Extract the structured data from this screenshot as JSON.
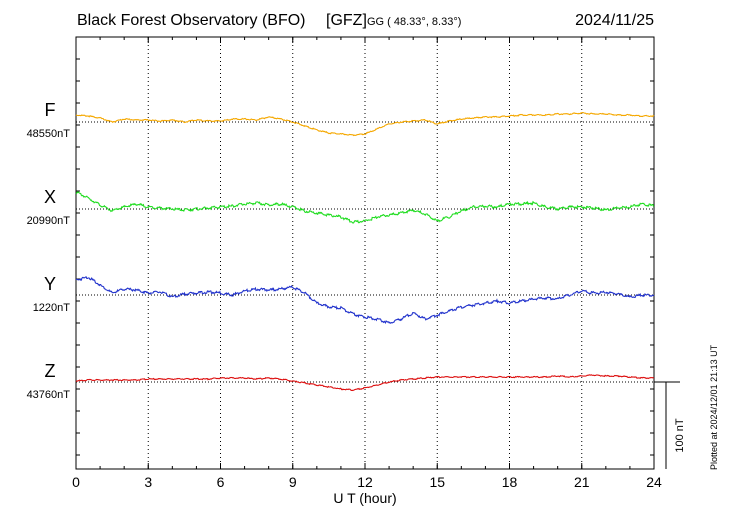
{
  "header": {
    "station": "Black Forest Observatory (BFO)",
    "institute": "[GFZ]",
    "coord_label": "GG ( 48.33°,   8.33°)",
    "date": "2024/11/25"
  },
  "plotted_note": "Plotted at 2024/12/01 21:13 UT",
  "chart_data": {
    "type": "line",
    "xlabel": "U T (hour)",
    "xlim": [
      0,
      24
    ],
    "xticks": [
      0,
      3,
      6,
      9,
      12,
      15,
      18,
      21,
      24
    ],
    "scale_bar_label": "100 nT",
    "scale_bar_nt": 100,
    "series": [
      {
        "name": "F",
        "baseline_label": "48550nT",
        "baseline_nt": 48550,
        "color": "#f5a800",
        "hours": [
          0,
          0.5,
          1,
          1.5,
          2,
          2.5,
          3,
          3.5,
          4,
          4.5,
          5,
          5.5,
          6,
          6.5,
          7,
          7.5,
          8,
          8.5,
          9,
          9.5,
          10,
          10.5,
          11,
          11.5,
          12,
          12.5,
          13,
          13.5,
          14,
          14.5,
          15,
          15.5,
          16,
          16.5,
          17,
          17.5,
          18,
          18.5,
          19,
          19.5,
          20,
          20.5,
          21,
          21.5,
          22,
          22.5,
          23,
          23.5,
          24
        ],
        "offsets_nt": [
          7,
          6,
          4,
          0,
          3,
          2,
          2,
          1,
          2,
          0,
          2,
          1,
          1,
          3,
          3,
          2,
          5,
          3,
          0,
          -4,
          -8,
          -11,
          -12,
          -13,
          -12,
          -7,
          -2,
          0,
          1,
          2,
          -2,
          1,
          3,
          4,
          5,
          5,
          6,
          7,
          7,
          7,
          8,
          8,
          9,
          8,
          8,
          7,
          7,
          6,
          6
        ]
      },
      {
        "name": "X",
        "baseline_label": "20990nT",
        "baseline_nt": 20990,
        "color": "#22dd22",
        "hours": [
          0,
          0.5,
          1,
          1.5,
          2,
          2.5,
          3,
          3.5,
          4,
          4.5,
          5,
          5.5,
          6,
          6.5,
          7,
          7.5,
          8,
          8.5,
          9,
          9.5,
          10,
          10.5,
          11,
          11.5,
          12,
          12.5,
          13,
          13.5,
          14,
          14.5,
          15,
          15.5,
          16,
          16.5,
          17,
          17.5,
          18,
          18.5,
          19,
          19.5,
          20,
          20.5,
          21,
          21.5,
          22,
          22.5,
          23,
          23.5,
          24
        ],
        "offsets_nt": [
          17,
          11,
          4,
          -2,
          2,
          5,
          2,
          1,
          0,
          -1,
          0,
          1,
          2,
          3,
          5,
          6,
          4,
          5,
          2,
          -2,
          -4,
          -6,
          -8,
          -13,
          -12,
          -8,
          -6,
          -4,
          -1,
          -5,
          -12,
          -8,
          -2,
          2,
          3,
          2,
          5,
          5,
          6,
          2,
          0,
          2,
          2,
          1,
          -1,
          1,
          2,
          5,
          3
        ]
      },
      {
        "name": "Y",
        "baseline_label": "1220nT",
        "baseline_nt": 1220,
        "color": "#2233cc",
        "hours": [
          0,
          0.5,
          1,
          1.5,
          2,
          2.5,
          3,
          3.5,
          4,
          4.5,
          5,
          5.5,
          6,
          6.5,
          7,
          7.5,
          8,
          8.5,
          9,
          9.5,
          10,
          10.5,
          11,
          11.5,
          12,
          12.5,
          13,
          13.5,
          14,
          14.5,
          15,
          15.5,
          16,
          16.5,
          17,
          17.5,
          18,
          18.5,
          19,
          19.5,
          20,
          20.5,
          21,
          21.5,
          22,
          22.5,
          23,
          23.5,
          24
        ],
        "offsets_nt": [
          15,
          18,
          10,
          2,
          6,
          5,
          2,
          3,
          -2,
          1,
          2,
          3,
          2,
          0,
          4,
          6,
          5,
          6,
          8,
          2,
          -8,
          -12,
          -13,
          -19,
          -22,
          -24,
          -28,
          -24,
          -18,
          -24,
          -20,
          -16,
          -12,
          -10,
          -8,
          -6,
          -8,
          -6,
          -4,
          -3,
          -4,
          0,
          4,
          2,
          3,
          1,
          -2,
          0,
          0
        ]
      },
      {
        "name": "Z",
        "baseline_label": "43760nT",
        "baseline_nt": 43760,
        "color": "#dd1111",
        "hours": [
          0,
          0.5,
          1,
          1.5,
          2,
          2.5,
          3,
          3.5,
          4,
          4.5,
          5,
          5.5,
          6,
          6.5,
          7,
          7.5,
          8,
          8.5,
          9,
          9.5,
          10,
          10.5,
          11,
          11.5,
          12,
          12.5,
          13,
          13.5,
          14,
          14.5,
          15,
          15.5,
          16,
          16.5,
          17,
          17.5,
          18,
          18.5,
          19,
          19.5,
          20,
          20.5,
          21,
          21.5,
          22,
          22.5,
          23,
          23.5,
          24
        ],
        "offsets_nt": [
          1,
          2,
          2,
          2,
          2,
          2,
          3,
          3,
          3,
          3,
          3,
          3,
          4,
          4,
          4,
          3,
          4,
          3,
          1,
          -1,
          -3,
          -5,
          -7,
          -8,
          -6,
          -3,
          0,
          2,
          3,
          4,
          5,
          5,
          5,
          5,
          5,
          5,
          5,
          5,
          5,
          5,
          6,
          5,
          6,
          7,
          6,
          6,
          5,
          4,
          4
        ]
      }
    ]
  }
}
